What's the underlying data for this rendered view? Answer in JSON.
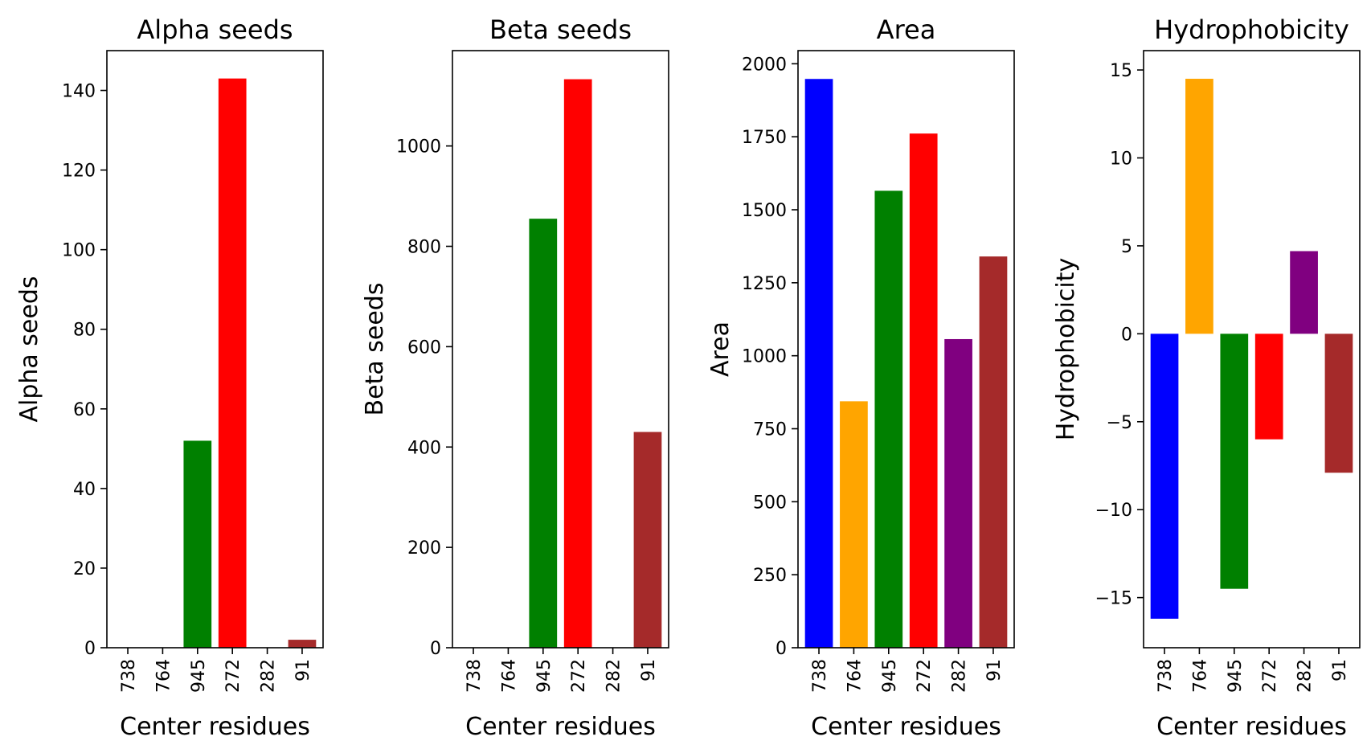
{
  "chart_data": [
    {
      "type": "bar",
      "title": "Alpha seeds",
      "xlabel": "Center residues",
      "ylabel": "Alpha seeds",
      "categories": [
        "738",
        "764",
        "945",
        "272",
        "282",
        "91"
      ],
      "values": [
        0,
        0,
        52,
        143,
        0,
        2
      ],
      "ylim": [
        0,
        150
      ],
      "yticks": [
        0,
        20,
        40,
        60,
        80,
        100,
        120,
        140
      ],
      "ytick_labels": [
        "0",
        "20",
        "40",
        "60",
        "80",
        "100",
        "120",
        "140"
      ],
      "colors": [
        "#0000ff",
        "#ffa500",
        "#008000",
        "#ff0000",
        "#800080",
        "#a52a2a"
      ],
      "grid": false
    },
    {
      "type": "bar",
      "title": "Beta seeds",
      "xlabel": "Center residues",
      "ylabel": "Beta seeds",
      "categories": [
        "738",
        "764",
        "945",
        "272",
        "282",
        "91"
      ],
      "values": [
        0,
        0,
        855,
        1133,
        0,
        430
      ],
      "ylim": [
        0,
        1190
      ],
      "yticks": [
        0,
        200,
        400,
        600,
        800,
        1000
      ],
      "ytick_labels": [
        "0",
        "200",
        "400",
        "600",
        "800",
        "1000"
      ],
      "colors": [
        "#0000ff",
        "#ffa500",
        "#008000",
        "#ff0000",
        "#800080",
        "#a52a2a"
      ],
      "grid": false
    },
    {
      "type": "bar",
      "title": "Area",
      "xlabel": "Center residues",
      "ylabel": "Area",
      "categories": [
        "738",
        "764",
        "945",
        "272",
        "282",
        "91"
      ],
      "values": [
        1948,
        844,
        1565,
        1761,
        1057,
        1340
      ],
      "ylim": [
        0,
        2045
      ],
      "yticks": [
        0,
        250,
        500,
        750,
        1000,
        1250,
        1500,
        1750,
        2000
      ],
      "ytick_labels": [
        "0",
        "250",
        "500",
        "750",
        "1000",
        "1250",
        "1500",
        "1750",
        "2000"
      ],
      "colors": [
        "#0000ff",
        "#ffa500",
        "#008000",
        "#ff0000",
        "#800080",
        "#a52a2a"
      ],
      "grid": false
    },
    {
      "type": "bar",
      "title": "Hydrophobicity",
      "xlabel": "Center residues",
      "ylabel": "Hydrophobicity",
      "categories": [
        "738",
        "764",
        "945",
        "272",
        "282",
        "91"
      ],
      "values": [
        -16.2,
        14.5,
        -14.5,
        -6.0,
        4.7,
        -7.9
      ],
      "ylim": [
        -17.85,
        16.1
      ],
      "yticks": [
        -15,
        -10,
        -5,
        0,
        5,
        10,
        15
      ],
      "ytick_labels": [
        "−15",
        "−10",
        "−5",
        "0",
        "5",
        "10",
        "15"
      ],
      "colors": [
        "#0000ff",
        "#ffa500",
        "#008000",
        "#ff0000",
        "#800080",
        "#a52a2a"
      ],
      "grid": false
    }
  ]
}
